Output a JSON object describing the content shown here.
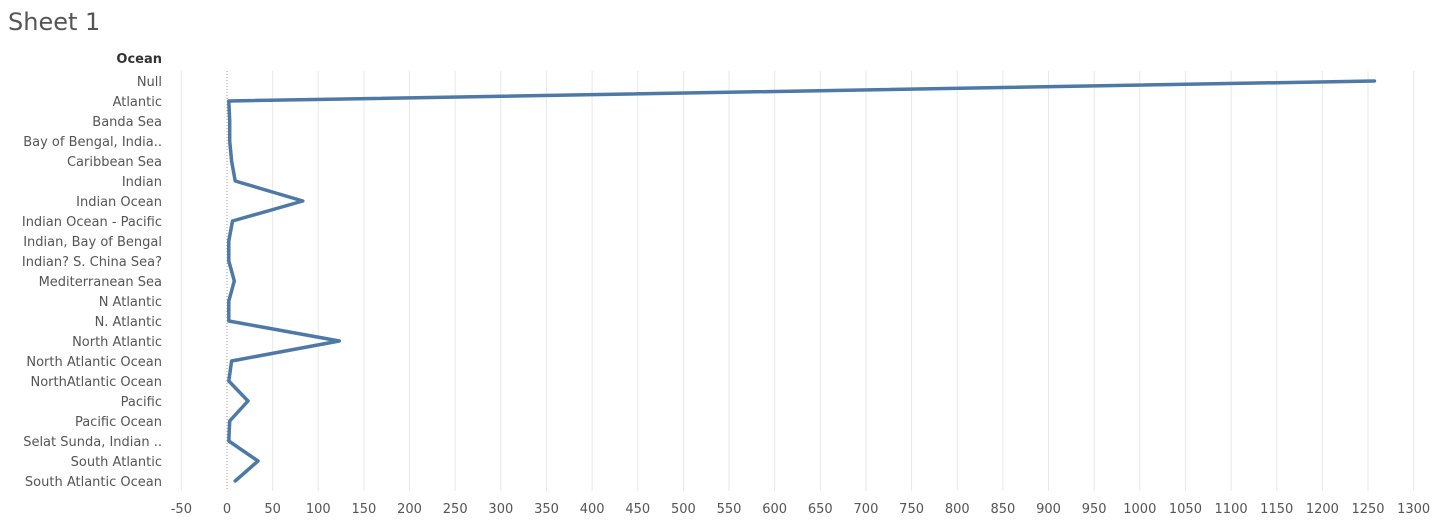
{
  "sheet_title": "Sheet 1",
  "row_header": "Ocean",
  "colors": {
    "line": "#4E79A7",
    "grid": "#E8E8E8",
    "zero_line": "#9A9A9A",
    "label": "#555555"
  },
  "chart_data": {
    "type": "line",
    "orientation": "horizontal",
    "categories": [
      "Null",
      "Atlantic",
      "Banda Sea",
      "Bay of Bengal, India..",
      "Caribbean Sea",
      "Indian",
      "Indian Ocean",
      "Indian Ocean - Pacific",
      "Indian, Bay of Bengal",
      "Indian? S. China Sea?",
      "Mediterranean Sea",
      "N Atlantic",
      "N. Atlantic",
      "North Atlantic",
      "North Atlantic Ocean",
      "NorthAtlantic Ocean",
      "Pacific",
      "Pacific Ocean",
      "Selat Sunda, Indian ..",
      "South Atlantic",
      "South Atlantic Ocean"
    ],
    "values": [
      1257,
      2,
      3,
      3,
      5,
      9,
      83,
      6,
      2,
      2,
      8,
      2,
      2,
      123,
      5,
      2,
      23,
      3,
      2,
      34,
      9
    ],
    "xlim": [
      -50,
      1300
    ],
    "xticks": [
      -50,
      0,
      50,
      100,
      150,
      200,
      250,
      300,
      350,
      400,
      450,
      500,
      550,
      600,
      650,
      700,
      750,
      800,
      850,
      900,
      950,
      1000,
      1050,
      1100,
      1150,
      1200,
      1250,
      1300
    ],
    "grid": true,
    "legend": "none"
  }
}
